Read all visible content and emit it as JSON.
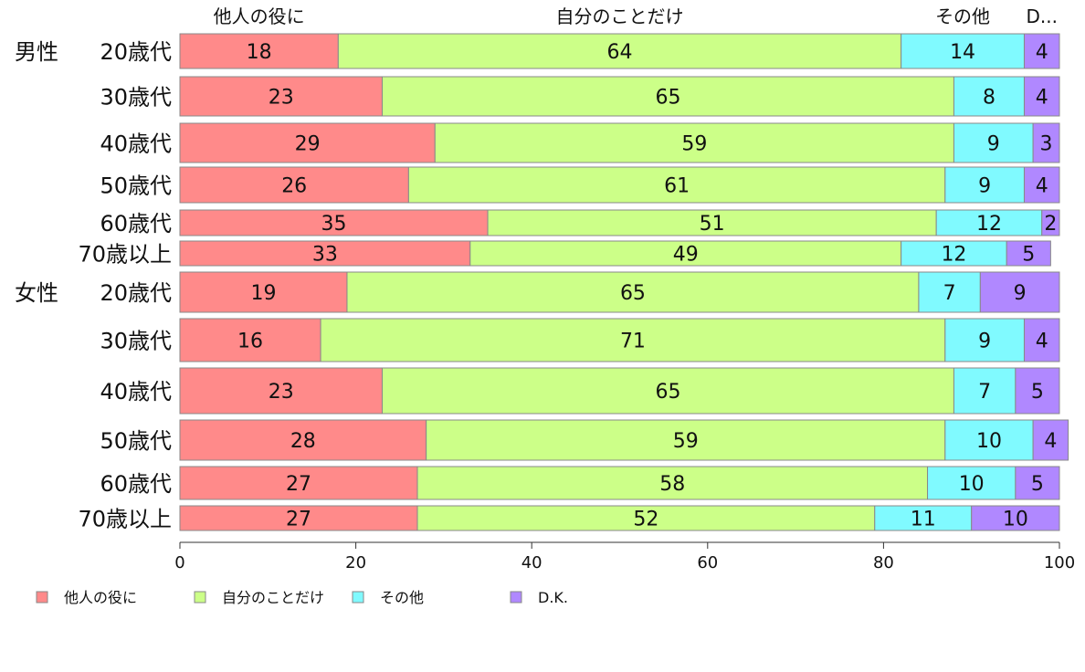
{
  "chart_data": {
    "type": "bar",
    "orientation": "horizontal",
    "stacked": true,
    "xlim": [
      0,
      100
    ],
    "xticks": [
      "0",
      "20",
      "40",
      "60",
      "80",
      "100"
    ],
    "series": [
      {
        "name": "他人の役に",
        "top_label": "他人の役に",
        "color": "#ff8a8a",
        "values": [
          18,
          23,
          29,
          26,
          35,
          33,
          19,
          16,
          23,
          28,
          27,
          27
        ]
      },
      {
        "name": "自分のことだけ",
        "top_label": "自分のことだけ",
        "color": "#ccff88",
        "values": [
          64,
          65,
          59,
          61,
          51,
          49,
          65,
          71,
          65,
          59,
          58,
          52
        ]
      },
      {
        "name": "その他",
        "top_label": "その他",
        "color": "#80faff",
        "values": [
          14,
          8,
          9,
          9,
          12,
          12,
          7,
          9,
          7,
          10,
          10,
          11
        ]
      },
      {
        "name": "D.K.",
        "top_label": "D...",
        "color": "#b088ff",
        "values": [
          4,
          4,
          3,
          4,
          2,
          5,
          9,
          4,
          5,
          4,
          5,
          10
        ]
      }
    ],
    "categories": [
      {
        "group": "男性",
        "label": "20歳代"
      },
      {
        "group": "",
        "label": "30歳代"
      },
      {
        "group": "",
        "label": "40歳代"
      },
      {
        "group": "",
        "label": "50歳代"
      },
      {
        "group": "",
        "label": "60歳代"
      },
      {
        "group": "",
        "label": "70歳以上"
      },
      {
        "group": "女性",
        "label": "20歳代"
      },
      {
        "group": "",
        "label": "30歳代"
      },
      {
        "group": "",
        "label": "40歳代"
      },
      {
        "group": "",
        "label": "50歳代"
      },
      {
        "group": "",
        "label": "60歳代"
      },
      {
        "group": "",
        "label": "70歳以上"
      }
    ],
    "legend_position": "bottom-left",
    "grid": false
  }
}
